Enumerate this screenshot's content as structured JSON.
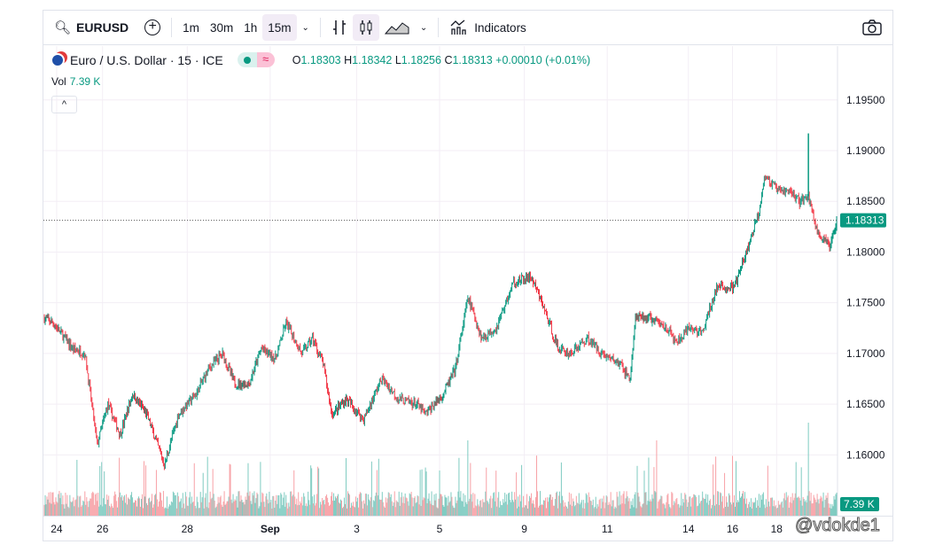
{
  "toolbar": {
    "symbol": "EURUSD",
    "intervals": [
      "1m",
      "30m",
      "1h",
      "15m"
    ],
    "active_interval": "15m",
    "indicators_label": "Indicators"
  },
  "legend": {
    "title": "Euro / U.S. Dollar · 15 · ICE",
    "ohlc": {
      "o_label": "O",
      "o": "1.18303",
      "h_label": "H",
      "h": "1.18342",
      "l_label": "L",
      "l": "1.18256",
      "c_label": "C",
      "c": "1.18313",
      "change": "+0.00010 (+0.01%)"
    },
    "vol_label": "Vol",
    "vol_value": "7.39 K",
    "collapse": "^",
    "flag_symbol": "≈"
  },
  "colors": {
    "up": "#089981",
    "down": "#f23645",
    "up_vol": "#7fcbc1",
    "down_vol": "#f7a1a6"
  },
  "watermark": "@vdokde1",
  "chart_data": {
    "type": "candlestick",
    "y_ticks": [
      "1.19500",
      "1.19000",
      "1.18500",
      "1.18000",
      "1.17500",
      "1.17000",
      "1.16500",
      "1.16000"
    ],
    "y_tick_values": [
      1.195,
      1.19,
      1.185,
      1.18,
      1.175,
      1.17,
      1.165,
      1.16
    ],
    "ylim": [
      1.154,
      1.199
    ],
    "last_price_label": "1.18313",
    "last_price": 1.18313,
    "volume_label": "7.39 K",
    "x_ticks": [
      {
        "label": "24",
        "bar": 7
      },
      {
        "label": "26",
        "bar": 33
      },
      {
        "label": "28",
        "bar": 81
      },
      {
        "label": "Sep",
        "bar": 128
      },
      {
        "label": "3",
        "bar": 177
      },
      {
        "label": "5",
        "bar": 224
      },
      {
        "label": "9",
        "bar": 272
      },
      {
        "label": "11",
        "bar": 319
      },
      {
        "label": "14",
        "bar": 365
      },
      {
        "label": "16",
        "bar": 390
      },
      {
        "label": "18",
        "bar": 415
      }
    ],
    "bars": 449,
    "price_path": [
      [
        0,
        1.1735
      ],
      [
        5,
        1.173
      ],
      [
        16,
        1.1705
      ],
      [
        23,
        1.17
      ],
      [
        30,
        1.161
      ],
      [
        36,
        1.165
      ],
      [
        43,
        1.162
      ],
      [
        50,
        1.166
      ],
      [
        58,
        1.164
      ],
      [
        68,
        1.159
      ],
      [
        76,
        1.164
      ],
      [
        86,
        1.166
      ],
      [
        93,
        1.1685
      ],
      [
        101,
        1.17
      ],
      [
        108,
        1.167
      ],
      [
        116,
        1.167
      ],
      [
        123,
        1.1705
      ],
      [
        131,
        1.1695
      ],
      [
        137,
        1.173
      ],
      [
        146,
        1.17
      ],
      [
        152,
        1.1715
      ],
      [
        158,
        1.169
      ],
      [
        163,
        1.164
      ],
      [
        171,
        1.1655
      ],
      [
        181,
        1.1635
      ],
      [
        191,
        1.1675
      ],
      [
        201,
        1.1655
      ],
      [
        211,
        1.165
      ],
      [
        216,
        1.164
      ],
      [
        226,
        1.166
      ],
      [
        233,
        1.1685
      ],
      [
        240,
        1.1755
      ],
      [
        248,
        1.1715
      ],
      [
        256,
        1.1725
      ],
      [
        266,
        1.177
      ],
      [
        276,
        1.1775
      ],
      [
        283,
        1.1745
      ],
      [
        291,
        1.1705
      ],
      [
        298,
        1.17
      ],
      [
        308,
        1.1715
      ],
      [
        316,
        1.17
      ],
      [
        326,
        1.169
      ],
      [
        332,
        1.1675
      ],
      [
        335,
        1.1735
      ],
      [
        343,
        1.1735
      ],
      [
        353,
        1.1725
      ],
      [
        358,
        1.171
      ],
      [
        366,
        1.1725
      ],
      [
        373,
        1.172
      ],
      [
        381,
        1.1765
      ],
      [
        391,
        1.1765
      ],
      [
        398,
        1.18
      ],
      [
        405,
        1.184
      ],
      [
        408,
        1.1875
      ],
      [
        416,
        1.186
      ],
      [
        423,
        1.186
      ],
      [
        428,
        1.185
      ],
      [
        433,
        1.1855
      ],
      [
        438,
        1.182
      ],
      [
        445,
        1.1805
      ],
      [
        449,
        1.1831
      ]
    ]
  }
}
